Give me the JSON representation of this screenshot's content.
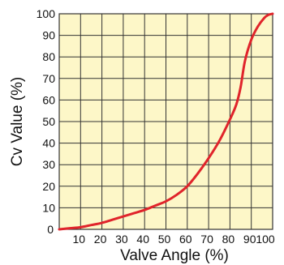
{
  "chart_data": {
    "type": "line",
    "xlabel": "Valve  Angle (%)",
    "ylabel": "Cv  Value  (%)",
    "xlim": [
      0,
      100
    ],
    "ylim": [
      0,
      100
    ],
    "x_ticks": [
      "0",
      "10",
      "20",
      "30",
      "40",
      "50",
      "60",
      "70",
      "80",
      "90",
      "100"
    ],
    "y_ticks": [
      "0",
      "10",
      "20",
      "30",
      "40",
      "50",
      "60",
      "70",
      "80",
      "90",
      "100"
    ],
    "grid": true,
    "series": [
      {
        "x": [
          0,
          5,
          10,
          15,
          20,
          25,
          30,
          35,
          40,
          45,
          50,
          55,
          60,
          65,
          70,
          75,
          80,
          83,
          85,
          87,
          90,
          93,
          96,
          98,
          100
        ],
        "y": [
          0,
          0.5,
          1,
          2,
          3,
          4.5,
          6,
          7.5,
          9,
          11,
          13,
          16,
          20,
          26,
          33,
          41,
          51,
          58,
          66,
          78,
          88,
          94,
          98,
          99.5,
          100
        ]
      }
    ]
  },
  "colors": {
    "plot_background": "#fdf7c8",
    "grid": "#333333",
    "line": "#e0242b"
  }
}
